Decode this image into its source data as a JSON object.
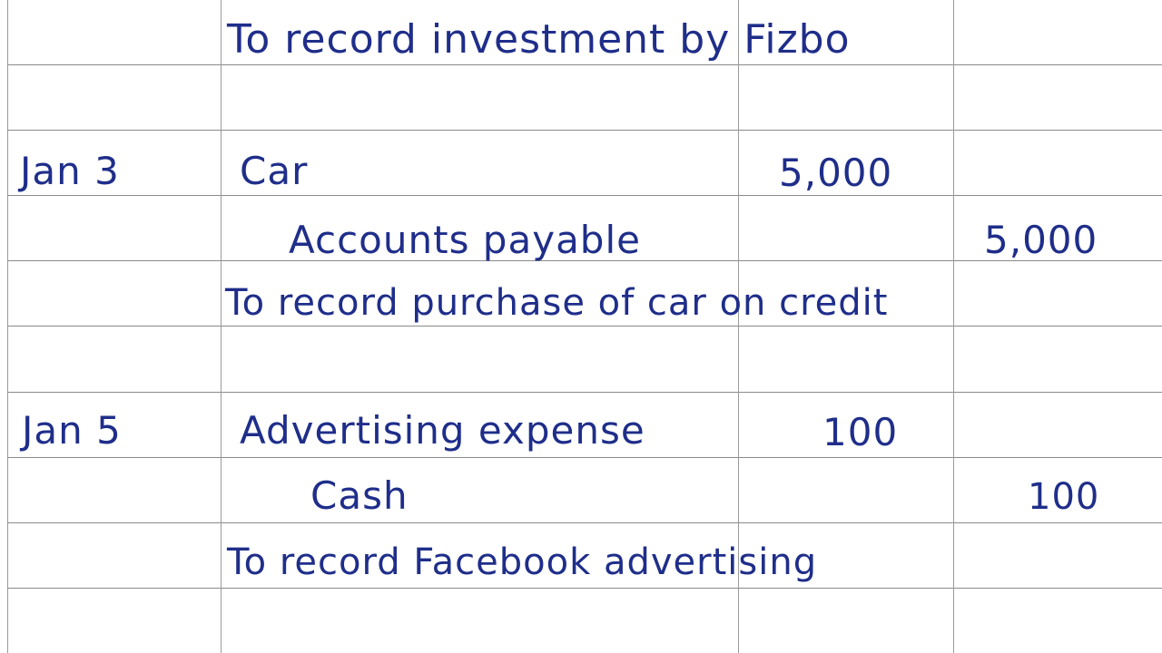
{
  "ink_color": "#1f2e8a",
  "grid_color": "#8a8a8a",
  "journal": {
    "entry_prev": {
      "memo": "To record investment by Fizbo"
    },
    "entry_jan3": {
      "date": "Jan 3",
      "debit_account": "Car",
      "debit_amount": "5,000",
      "credit_account": "Accounts payable",
      "credit_amount": "5,000",
      "memo": "To record purchase of car on credit"
    },
    "entry_jan5": {
      "date": "Jan 5",
      "debit_account": "Advertising expense",
      "debit_amount": "100",
      "credit_account": "Cash",
      "credit_amount": "100",
      "memo": "To record Facebook advertising"
    }
  }
}
